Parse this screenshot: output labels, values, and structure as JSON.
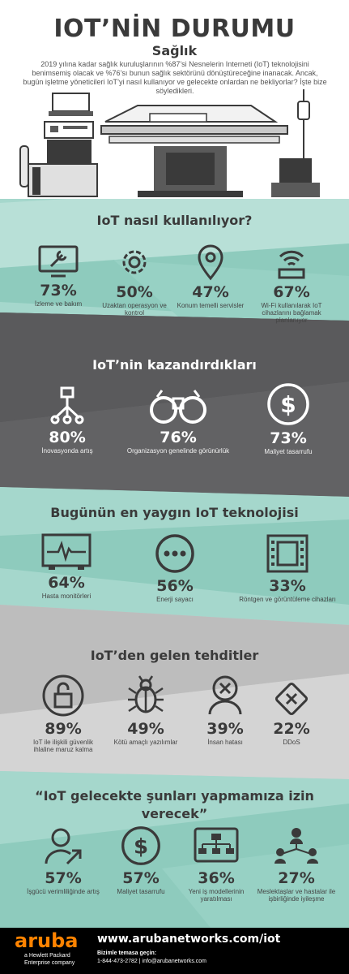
{
  "header": {
    "title": "IOT’NİN DURUMU",
    "subtitle": "Sağlık",
    "intro": "2019 yılına kadar sağlık kuruluşlarının %87’si Nesnelerin Interneti (IoT) teknolojisini benimsemiş olacak ve %76’sı bunun sağlık sektörünü dönüştüreceğine inanacak. Ancak, bugün işletme yöneticileri IoT’yi nasıl kullanıyor ve gelecekte onlardan ne bekliyorlar? İşte bize söyledikleri."
  },
  "sections": {
    "usage": {
      "title": "IoT nasıl kullanılıyor?",
      "items": [
        {
          "pct": "73%",
          "label": "İzleme ve bakım",
          "icon": "monitor-wrench-icon"
        },
        {
          "pct": "50%",
          "label": "Uzaktan operasyon ve kontrol",
          "icon": "gear-icon"
        },
        {
          "pct": "47%",
          "label": "Konum temelli servisler",
          "icon": "location-pin-icon"
        },
        {
          "pct": "67%",
          "label": "Wi-Fi kullanılarak IoT cihazlarını bağlamak planlanıyor",
          "icon": "wifi-router-icon"
        }
      ]
    },
    "benefits": {
      "title": "IoT’nin kazandırdıkları",
      "items": [
        {
          "pct": "80%",
          "label": "İnovasyonda artış",
          "icon": "network-tree-icon"
        },
        {
          "pct": "76%",
          "label": "Organizasyon genelinde görünürlük",
          "icon": "binoculars-icon"
        },
        {
          "pct": "73%",
          "label": "Maliyet tasarrufu",
          "icon": "dollar-icon"
        }
      ]
    },
    "tech": {
      "title": "Bugünün en yaygın IoT teknolojisi",
      "items": [
        {
          "pct": "64%",
          "label": "Hasta monitörleri",
          "icon": "heart-monitor-icon"
        },
        {
          "pct": "56%",
          "label": "Enerji sayacı",
          "icon": "energy-meter-icon"
        },
        {
          "pct": "33%",
          "label": "Röntgen ve görüntüleme cihazları",
          "icon": "film-icon"
        }
      ]
    },
    "threats": {
      "title": "IoT’den gelen tehditler",
      "items": [
        {
          "pct": "89%",
          "label": "IoT ile ilişkili güvenlik ihlaline maruz kalma",
          "icon": "broken-lock-icon"
        },
        {
          "pct": "49%",
          "label": "Kötü amaçlı yazılımlar",
          "icon": "bug-icon"
        },
        {
          "pct": "39%",
          "label": "İnsan hatası",
          "icon": "user-error-icon"
        },
        {
          "pct": "22%",
          "label": "DDoS",
          "icon": "ddos-icon"
        }
      ]
    },
    "future": {
      "title": "“IoT gelecekte şunları yapmamıza izin verecek”",
      "items": [
        {
          "pct": "57%",
          "label": "İşgücü verimliliğinde artış",
          "icon": "user-growth-icon"
        },
        {
          "pct": "57%",
          "label": "Maliyet tasarrufu",
          "icon": "dollar-icon"
        },
        {
          "pct": "36%",
          "label": "Yeni iş modellerinin yaratılması",
          "icon": "org-chart-icon"
        },
        {
          "pct": "27%",
          "label": "Meslektaşlar ve hastalar ile işbirliğinde iyileşme",
          "icon": "collaboration-icon"
        }
      ]
    }
  },
  "footer": {
    "logo": "aruba",
    "tagline_1": "a Hewlett Packard",
    "tagline_2": "Enterprise company",
    "url": "www.arubanetworks.com/iot",
    "contact_heading": "Bizimle temasa geçin:",
    "contact": "1-844-473-2782 | info@arubanetworks.com"
  },
  "colors": {
    "mint": "#a5d7cc",
    "mint_dark": "#8ecbbd",
    "charcoal": "#4f4f51",
    "charcoal_light": "#626264",
    "text": "#3a3a3a",
    "brand_orange": "#ff8300"
  }
}
